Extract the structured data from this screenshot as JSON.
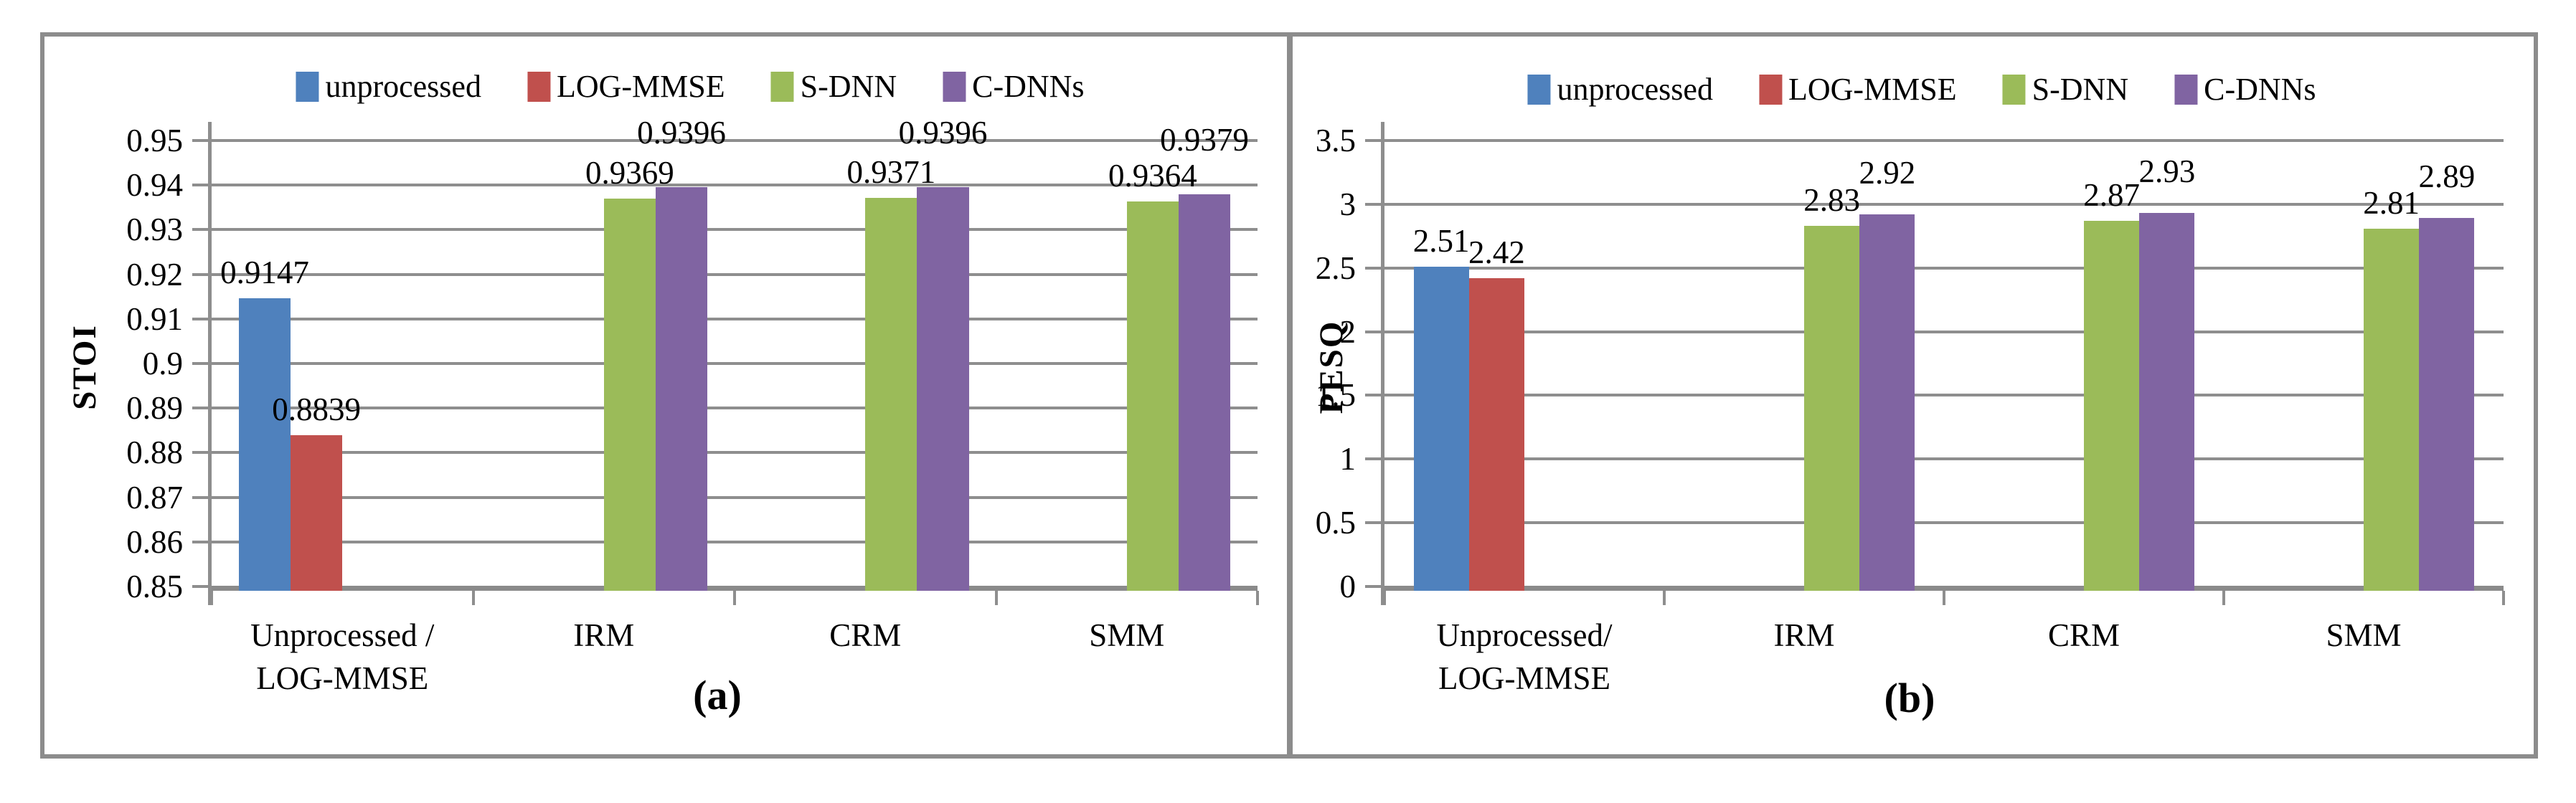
{
  "figure": {
    "frame_color": "#8C8C8C",
    "gridline_color": "#8E8E8E",
    "background": "#FFFFFF"
  },
  "chart_data": [
    {
      "type": "bar",
      "caption": "(a)",
      "ylabel": "STOI",
      "xlabel": "",
      "ylim": [
        0.85,
        0.95
      ],
      "grid": true,
      "legend_position": "top",
      "ytick_labels": [
        "0.95",
        "0.94",
        "0.93",
        "0.92",
        "0.91",
        "0.9",
        "0.89",
        "0.88",
        "0.87",
        "0.86",
        "0.85"
      ],
      "categories": [
        [
          "Unprocessed /",
          "LOG-MMSE"
        ],
        [
          "IRM"
        ],
        [
          "CRM"
        ],
        [
          "SMM"
        ]
      ],
      "legend": [
        "unprocessed",
        "LOG-MMSE",
        "S-DNN",
        "C-DNNs"
      ],
      "series": [
        {
          "name": "unprocessed",
          "color": "#4F81BD",
          "values": [
            0.9147,
            null,
            null,
            null
          ],
          "labels": [
            "0.9147",
            null,
            null,
            null
          ]
        },
        {
          "name": "LOG-MMSE",
          "color": "#C0504D",
          "values": [
            0.8839,
            null,
            null,
            null
          ],
          "labels": [
            "0.8839",
            null,
            null,
            null
          ]
        },
        {
          "name": "S-DNN",
          "color": "#9BBB59",
          "values": [
            null,
            0.9369,
            0.9371,
            0.9364
          ],
          "labels": [
            null,
            "0.9369",
            "0.9371",
            "0.9364"
          ]
        },
        {
          "name": "C-DNNs",
          "color": "#8064A2",
          "values": [
            null,
            0.9396,
            0.9396,
            0.9379
          ],
          "labels": [
            null,
            "0.9396",
            "0.9396",
            "0.9379"
          ]
        }
      ]
    },
    {
      "type": "bar",
      "caption": "(b)",
      "ylabel": "PESQ",
      "xlabel": "",
      "ylim": [
        0,
        3.5
      ],
      "grid": true,
      "legend_position": "top",
      "ytick_labels": [
        "3.5",
        "3",
        "2.5",
        "2",
        "1.5",
        "1",
        "0.5",
        "0"
      ],
      "categories": [
        [
          "Unprocessed/",
          "LOG-MMSE"
        ],
        [
          "IRM"
        ],
        [
          "CRM"
        ],
        [
          "SMM"
        ]
      ],
      "legend": [
        "unprocessed",
        "LOG-MMSE",
        "S-DNN",
        "C-DNNs"
      ],
      "series": [
        {
          "name": "unprocessed",
          "color": "#4F81BD",
          "values": [
            2.51,
            null,
            null,
            null
          ],
          "labels": [
            "2.51",
            null,
            null,
            null
          ]
        },
        {
          "name": "LOG-MMSE",
          "color": "#C0504D",
          "values": [
            2.42,
            null,
            null,
            null
          ],
          "labels": [
            "2.42",
            null,
            null,
            null
          ]
        },
        {
          "name": "S-DNN",
          "color": "#9BBB59",
          "values": [
            null,
            2.83,
            2.87,
            2.81
          ],
          "labels": [
            null,
            "2.83",
            "2.87",
            "2.81"
          ]
        },
        {
          "name": "C-DNNs",
          "color": "#8064A2",
          "values": [
            null,
            2.92,
            2.93,
            2.89
          ],
          "labels": [
            null,
            "2.92",
            "2.93",
            "2.89"
          ]
        }
      ]
    }
  ]
}
